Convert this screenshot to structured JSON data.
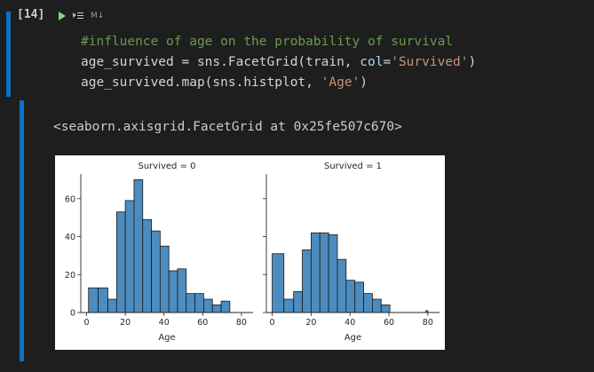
{
  "cell": {
    "execution_count": "[14]",
    "language_label": "M↓",
    "code_lines": [
      [
        {
          "text": "#influence of age on the probability of survival",
          "cls": "tok-comment"
        }
      ],
      [
        {
          "text": "age_survived = sns.FacetGrid(train, ",
          "cls": ""
        },
        {
          "text": "col",
          "cls": "tok-param"
        },
        {
          "text": "=",
          "cls": ""
        },
        {
          "text": "'Survived'",
          "cls": "tok-string"
        },
        {
          "text": ")",
          "cls": ""
        }
      ],
      [
        {
          "text": "age_survived.map(sns.histplot, ",
          "cls": ""
        },
        {
          "text": "'Age'",
          "cls": "tok-string"
        },
        {
          "text": ")",
          "cls": ""
        }
      ]
    ],
    "output_text": "<seaborn.axisgrid.FacetGrid at 0x25fe507c670>"
  },
  "colors": {
    "cell_bar": "#0e70c0",
    "bar_fill": "#4c8cbf",
    "bar_edge": "#1a1a1a"
  },
  "chart_data": [
    {
      "type": "bar",
      "title": "Survived = 0",
      "xlabel": "Age",
      "ylabel": "",
      "xlim": [
        -3,
        86
      ],
      "ylim": [
        0,
        73
      ],
      "xticks": [
        0,
        20,
        40,
        60,
        80
      ],
      "yticks": [
        0,
        20,
        40,
        60
      ],
      "bin_edges": [
        1,
        6,
        11,
        15.5,
        20,
        24.5,
        29,
        33.5,
        38,
        42.5,
        47,
        51.5,
        56,
        60.5,
        65,
        69.5,
        74,
        79
      ],
      "values": [
        13,
        13,
        7,
        53,
        59,
        70,
        49,
        43,
        35,
        22,
        23,
        10,
        10,
        7,
        4,
        6,
        0
      ]
    },
    {
      "type": "bar",
      "title": "Survived = 1",
      "xlabel": "Age",
      "ylabel": "",
      "xlim": [
        -3,
        86
      ],
      "ylim": [
        0,
        73
      ],
      "xticks": [
        0,
        20,
        40,
        60,
        80
      ],
      "yticks": [
        0,
        20,
        40,
        60
      ],
      "bin_edges": [
        0,
        6,
        11,
        15.5,
        20,
        24.5,
        29,
        33.5,
        38,
        42.5,
        47,
        51.5,
        56,
        60.5,
        65,
        69.5,
        74,
        79,
        80
      ],
      "values": [
        31,
        7,
        11,
        33,
        42,
        42,
        41,
        28,
        17,
        16,
        10,
        7,
        4,
        0,
        0,
        0,
        0,
        1
      ]
    }
  ]
}
